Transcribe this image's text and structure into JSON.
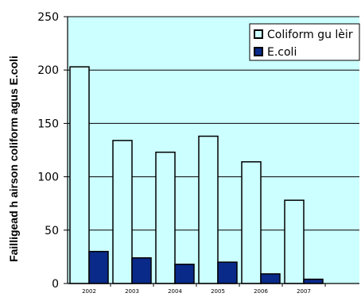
{
  "chart_data": {
    "type": "bar",
    "categories": [
      "2002",
      "2003",
      "2004",
      "2005",
      "2006",
      "2007"
    ],
    "series": [
      {
        "name": "Coliform gu lèir",
        "values": [
          203,
          134,
          123,
          138,
          114,
          78
        ],
        "color": "#ccffff"
      },
      {
        "name": "E.coli",
        "values": [
          30,
          24,
          18,
          20,
          9,
          4
        ],
        "color": "#0a2a8a"
      }
    ],
    "ylabel": "Failligead h airson coliform agus E.coli",
    "ylim": [
      0,
      250
    ],
    "yticks": [
      0,
      50,
      100,
      150,
      200,
      250
    ],
    "plot_background": "#ccffff",
    "grid": true,
    "legend_position": "top-right"
  }
}
